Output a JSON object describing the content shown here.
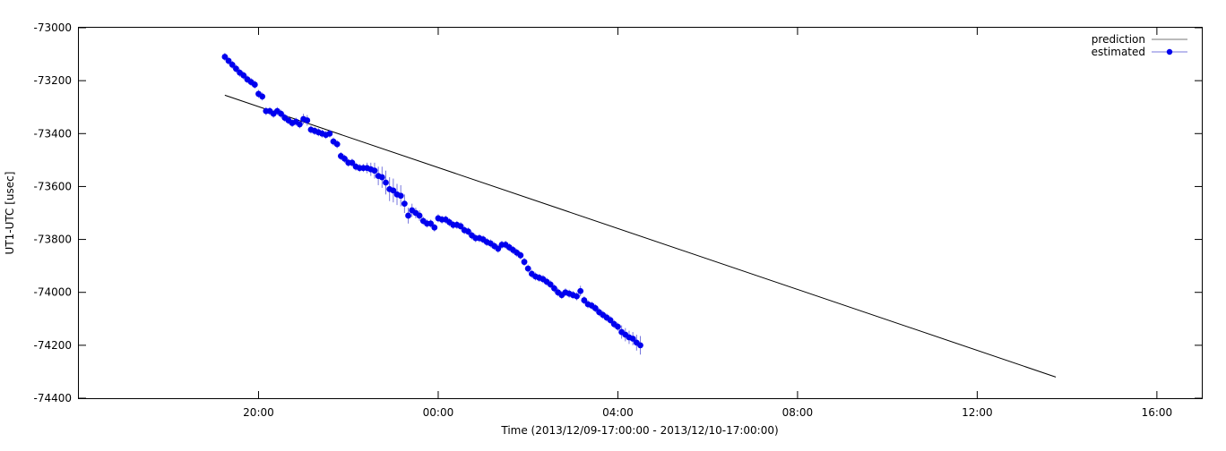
{
  "chart_data": {
    "type": "scatter",
    "title": "",
    "xlabel": "Time (2013/12/09-17:00:00 - 2013/12/10-17:00:00)",
    "ylabel": "UT1-UTC [usec]",
    "xlim": [
      "2013-12-09 16:00",
      "2013-12-10 17:00"
    ],
    "ylim": [
      -74400,
      -73000
    ],
    "x_ticks": [
      "20:00",
      "00:00",
      "04:00",
      "08:00",
      "12:00",
      "16:00"
    ],
    "y_ticks": [
      "-73000",
      "-73200",
      "-73400",
      "-73600",
      "-73800",
      "-74000",
      "-74200",
      "-74400"
    ],
    "grid": false,
    "legend_position": "top-right",
    "colors": {
      "prediction": "#000000",
      "estimated": "#0000ee",
      "errorbar": "#7777dd"
    },
    "series": [
      {
        "name": "prediction",
        "style": "line",
        "x": [
          "2013-12-09 19:15",
          "2013-12-10 13:45"
        ],
        "y": [
          -73255,
          -74320
        ]
      },
      {
        "name": "estimated",
        "style": "points-with-errorbars",
        "x_start": "2013-12-09 19:15",
        "x_step_minutes": 5,
        "y": [
          -73110,
          -73125,
          -73140,
          -73155,
          -73170,
          -73180,
          -73195,
          -73205,
          -73215,
          -73250,
          -73260,
          -73315,
          -73315,
          -73325,
          -73315,
          -73325,
          -73340,
          -73350,
          -73360,
          -73355,
          -73365,
          -73345,
          -73350,
          -73385,
          -73390,
          -73395,
          -73400,
          -73405,
          -73400,
          -73430,
          -73440,
          -73485,
          -73495,
          -73510,
          -73510,
          -73525,
          -73530,
          -73530,
          -73530,
          -73535,
          -73540,
          -73560,
          -73565,
          -73585,
          -73610,
          -73615,
          -73630,
          -73635,
          -73665,
          -73710,
          -73690,
          -73700,
          -73710,
          -73730,
          -73740,
          -73740,
          -73755,
          -73720,
          -73725,
          -73725,
          -73735,
          -73745,
          -73745,
          -73750,
          -73765,
          -73770,
          -73785,
          -73795,
          -73795,
          -73800,
          -73810,
          -73815,
          -73825,
          -73835,
          -73820,
          -73820,
          -73830,
          -73840,
          -73850,
          -73860,
          -73885,
          -73910,
          -73930,
          -73940,
          -73945,
          -73950,
          -73960,
          -73970,
          -73985,
          -74000,
          -74010,
          -74000,
          -74005,
          -74010,
          -74015,
          -73995,
          -74030,
          -74045,
          -74050,
          -74060,
          -74075,
          -74085,
          -74095,
          -74105,
          -74120,
          -74130,
          -74150,
          -74160,
          -74170,
          -74175,
          -74190,
          -74200
        ],
        "err": [
          15,
          15,
          15,
          15,
          15,
          15,
          15,
          15,
          15,
          15,
          15,
          15,
          15,
          15,
          15,
          15,
          15,
          15,
          15,
          15,
          15,
          20,
          20,
          15,
          15,
          15,
          15,
          15,
          15,
          15,
          15,
          15,
          15,
          15,
          15,
          15,
          15,
          15,
          20,
          25,
          30,
          35,
          40,
          45,
          45,
          45,
          40,
          40,
          35,
          30,
          25,
          20,
          20,
          15,
          15,
          15,
          15,
          15,
          15,
          15,
          15,
          15,
          15,
          15,
          15,
          15,
          15,
          15,
          15,
          15,
          15,
          15,
          15,
          15,
          15,
          15,
          15,
          15,
          15,
          15,
          15,
          15,
          15,
          15,
          15,
          15,
          15,
          15,
          15,
          15,
          15,
          15,
          15,
          15,
          15,
          20,
          15,
          15,
          15,
          15,
          15,
          15,
          15,
          15,
          15,
          15,
          25,
          25,
          25,
          25,
          30,
          35
        ]
      }
    ]
  }
}
